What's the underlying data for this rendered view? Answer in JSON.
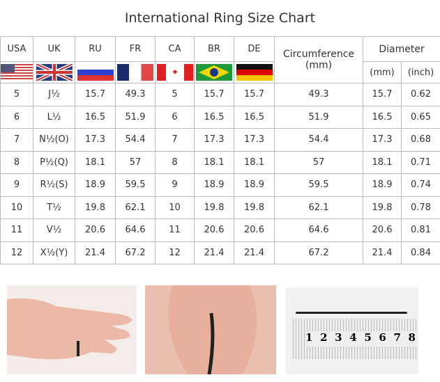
{
  "title": "International Ring Size Chart",
  "headers": {
    "usa": "USA",
    "uk": "UK",
    "ru": "RU",
    "fr": "FR",
    "ca": "CA",
    "br": "BR",
    "de": "DE",
    "circumference": "Circumference\n(mm)",
    "diameter": "Diameter",
    "mm": "(mm)",
    "inch": "(inch)"
  },
  "flags": [
    "usa-flag",
    "uk-flag",
    "russia-flag",
    "france-flag",
    "canada-flag",
    "brazil-flag",
    "germany-flag"
  ],
  "rows": [
    [
      "5",
      "J½",
      "15.7",
      "49.3",
      "5",
      "15.7",
      "15.7",
      "49.3",
      "15.7",
      "0.62"
    ],
    [
      "6",
      "L½",
      "16.5",
      "51.9",
      "6",
      "16.5",
      "16.5",
      "51.9",
      "16.5",
      "0.65"
    ],
    [
      "7",
      "N½(O)",
      "17.3",
      "54.4",
      "7",
      "17.3",
      "17.3",
      "54.4",
      "17.3",
      "0.68"
    ],
    [
      "8",
      "P½(Q)",
      "18.1",
      "57",
      "8",
      "18.1",
      "18.1",
      "57",
      "18.1",
      "0.71"
    ],
    [
      "9",
      "R½(S)",
      "18.9",
      "59.5",
      "9",
      "18.9",
      "18.9",
      "59.5",
      "18.9",
      "0.74"
    ],
    [
      "10",
      "T½",
      "19.8",
      "62.1",
      "10",
      "19.8",
      "19.8",
      "62.1",
      "19.8",
      "0.78"
    ],
    [
      "11",
      "V½",
      "20.6",
      "64.6",
      "11",
      "20.6",
      "20.6",
      "64.6",
      "20.6",
      "0.81"
    ],
    [
      "12",
      "X½(Y)",
      "21.4",
      "67.2",
      "12",
      "21.4",
      "21.4",
      "67.2",
      "21.4",
      "0.84"
    ]
  ],
  "ruler": {
    "numbers": [
      "1",
      "2",
      "3",
      "4",
      "5",
      "6",
      "7",
      "8"
    ]
  }
}
